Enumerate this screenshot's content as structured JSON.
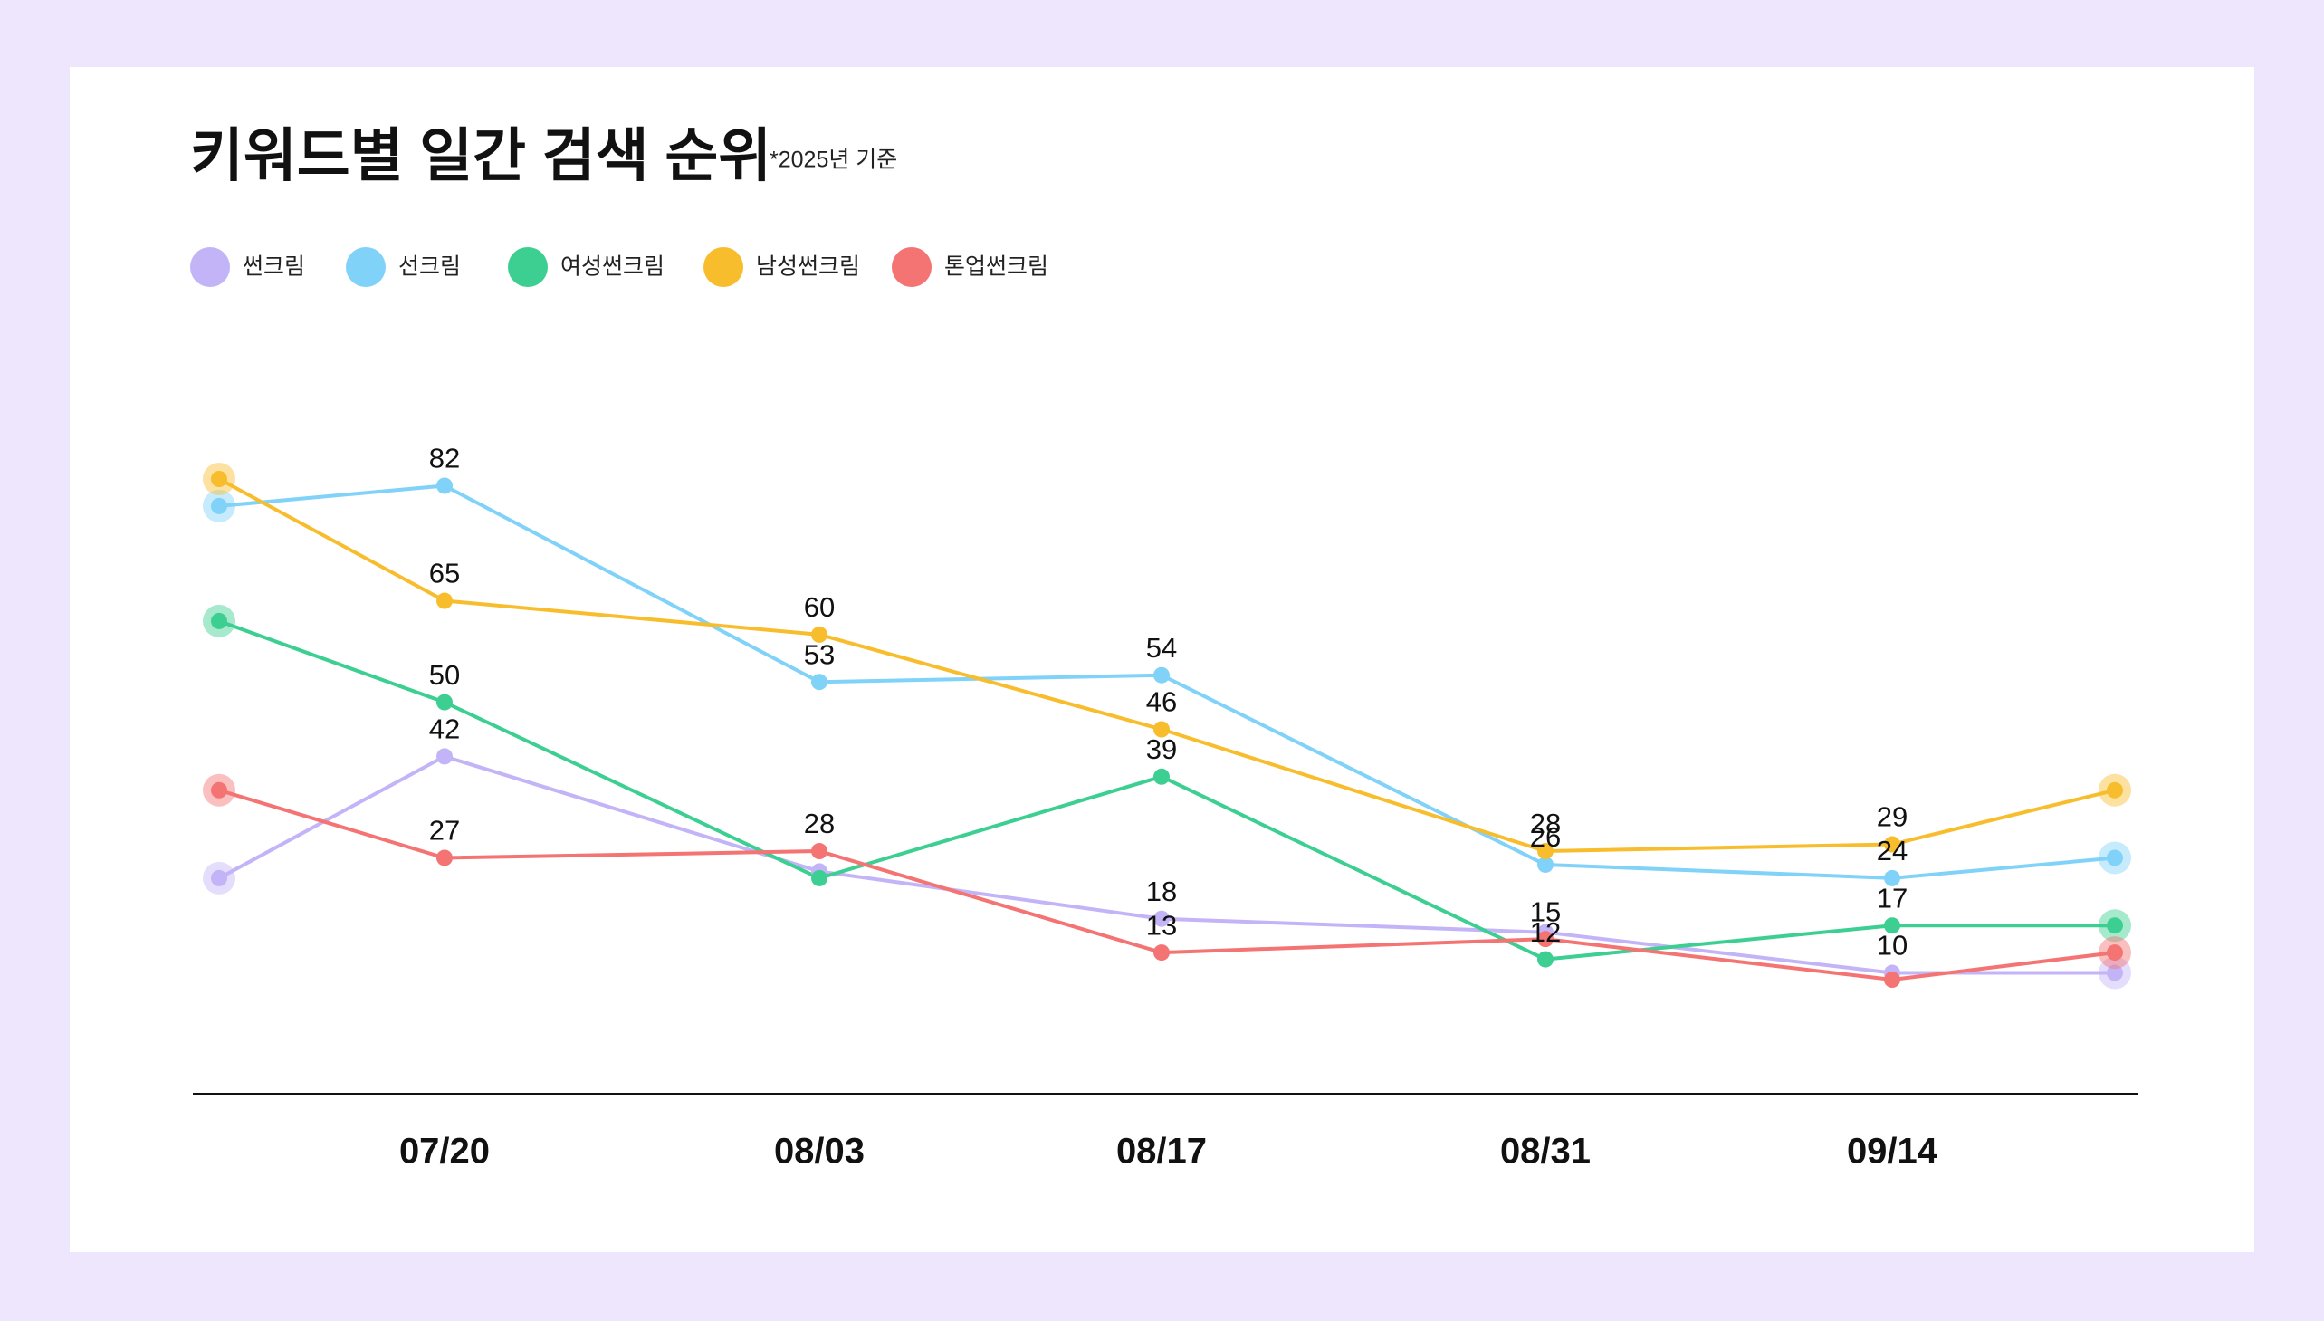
{
  "chart_data": {
    "type": "line",
    "title": "키워드별 일간 검색 순위",
    "subtitle": "*2025년 기준",
    "categories": [
      null,
      "07/20",
      "08/03",
      "08/17",
      "08/31",
      "09/14",
      null
    ],
    "series": [
      {
        "name": "썬크림",
        "color": "#c3b4f8",
        "values": [
          24,
          42,
          25,
          18,
          16,
          10,
          10
        ],
        "value_labels": [
          null,
          "42",
          null,
          "18",
          null,
          "10",
          null
        ]
      },
      {
        "name": "선크림",
        "color": "#80d2f8",
        "values": [
          79,
          82,
          53,
          54,
          26,
          24,
          27
        ],
        "value_labels": [
          null,
          "82",
          "53",
          "54",
          "26",
          "24",
          null
        ]
      },
      {
        "name": "여성썬크림",
        "color": "#3ccf91",
        "values": [
          62,
          50,
          24,
          39,
          12,
          17,
          17
        ],
        "value_labels": [
          null,
          "50",
          null,
          "39",
          "12",
          "17",
          null
        ]
      },
      {
        "name": "남성썬크림",
        "color": "#f8bd2c",
        "values": [
          83,
          65,
          60,
          46,
          28,
          29,
          37
        ],
        "value_labels": [
          null,
          "65",
          "60",
          "46",
          "28",
          "29",
          null
        ]
      },
      {
        "name": "톤업썬크림",
        "color": "#f47373",
        "values": [
          37,
          27,
          28,
          13,
          15,
          9,
          13
        ],
        "value_labels": [
          null,
          "27",
          "28",
          "13",
          "15",
          null,
          null
        ]
      }
    ]
  }
}
